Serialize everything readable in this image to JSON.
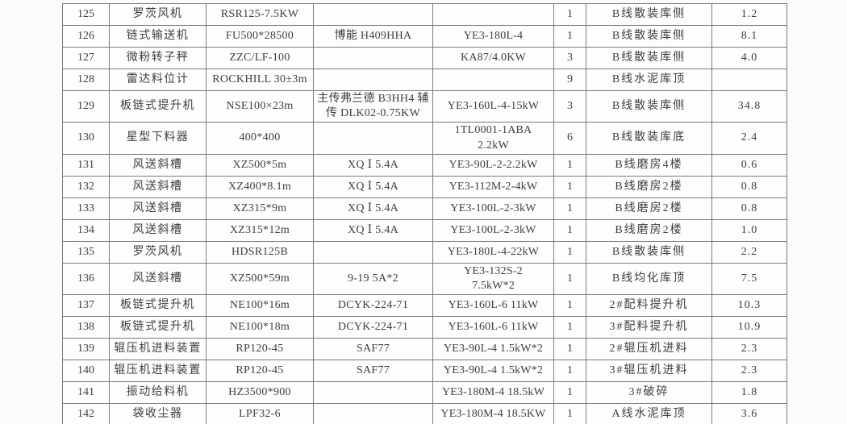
{
  "document": {
    "kind": "equipment-list-table",
    "colors": {
      "page_background": "#fbfbfb",
      "cell_background": "#fdfdfd",
      "border": "#7b7b7b",
      "text": "#3f3f3f"
    }
  },
  "table": {
    "rows": [
      {
        "cells": [
          "125",
          "罗茨风机",
          "RSR125-7.5KW",
          "",
          "",
          "1",
          "B线散装库侧",
          "1.2"
        ]
      },
      {
        "cells": [
          "126",
          "链式输送机",
          "FU500*28500",
          "博能 H409HHA",
          "YE3-180L-4",
          "1",
          "B线散装库侧",
          "8.1"
        ]
      },
      {
        "cells": [
          "127",
          "微粉转子秤",
          "ZZC/LF-100",
          "",
          "KA87/4.0KW",
          "3",
          "B线散装库侧",
          "4.0"
        ]
      },
      {
        "cells": [
          "128",
          "雷达料位计",
          "ROCKHILL 30±3m",
          "",
          "",
          "9",
          "B线水泥库顶",
          ""
        ]
      },
      {
        "cells": [
          "129",
          "板链式提升机",
          "NSE100×23m",
          "主传弗兰德 B3HH4 辅\n传 DLK02-0.75KW",
          "YE3-160L-4-15kW",
          "3",
          "B线散装库侧",
          "34.8"
        ]
      },
      {
        "cells": [
          "130",
          "星型下料器",
          "400*400",
          "",
          "1TL0001-1ABA\n2.2kW",
          "6",
          "B线散装库底",
          "2.4"
        ]
      },
      {
        "cells": [
          "131",
          "风送斜槽",
          "XZ500*5m",
          "XQ Ⅰ 5.4A",
          "YE3-90L-2-2.2kW",
          "1",
          "B线磨房4楼",
          "0.6"
        ]
      },
      {
        "cells": [
          "132",
          "风送斜槽",
          "XZ400*8.1m",
          "XQ Ⅰ 5.4A",
          "YE3-112M-2-4kW",
          "1",
          "B线磨房2楼",
          "0.8"
        ]
      },
      {
        "cells": [
          "133",
          "风送斜槽",
          "XZ315*9m",
          "XQ Ⅰ 5.4A",
          "YE3-100L-2-3kW",
          "1",
          "B线磨房2楼",
          "0.8"
        ]
      },
      {
        "cells": [
          "134",
          "风送斜槽",
          "XZ315*12m",
          "XQ Ⅰ 5.4A",
          "YE3-100L-2-3kW",
          "1",
          "B线磨房2楼",
          "1.0"
        ]
      },
      {
        "cells": [
          "135",
          "罗茨风机",
          "HDSR125B",
          "",
          "YE3-180L-4-22kW",
          "1",
          "B线散装库侧",
          "2.2"
        ]
      },
      {
        "cells": [
          "136",
          "风送斜槽",
          "XZ500*59m",
          "9-19 5A*2",
          "YE3-132S-2\n7.5kW*2",
          "1",
          "B线均化库顶",
          "7.5"
        ]
      },
      {
        "cells": [
          "137",
          "板链式提升机",
          "NE100*16m",
          "DCYK-224-71",
          "YE3-160L-6 11kW",
          "1",
          "2#配料提升机",
          "10.3"
        ]
      },
      {
        "cells": [
          "138",
          "板链式提升机",
          "NE100*18m",
          "DCYK-224-71",
          "YE3-160L-6 11kW",
          "1",
          "3#配料提升机",
          "10.9"
        ]
      },
      {
        "cells": [
          "139",
          "辊压机进料装置",
          "RP120-45",
          "SAF77",
          "YE3-90L-4 1.5kW*2",
          "1",
          "2#辊压机进料",
          "2.3"
        ]
      },
      {
        "cells": [
          "140",
          "辊压机进料装置",
          "RP120-45",
          "SAF77",
          "YE3-90L-4 1.5kW*2",
          "1",
          "3#辊压机进料",
          "2.3"
        ]
      },
      {
        "cells": [
          "141",
          "振动给料机",
          "HZ3500*900",
          "",
          "YE3-180M-4 18.5kW",
          "1",
          "3#破碎",
          "1.8"
        ]
      },
      {
        "cells": [
          "142",
          "袋收尘器",
          "LPF32-6",
          "",
          "YE3-180M-4 18.5KW",
          "1",
          "A线水泥库顶",
          "3.6"
        ]
      }
    ]
  }
}
